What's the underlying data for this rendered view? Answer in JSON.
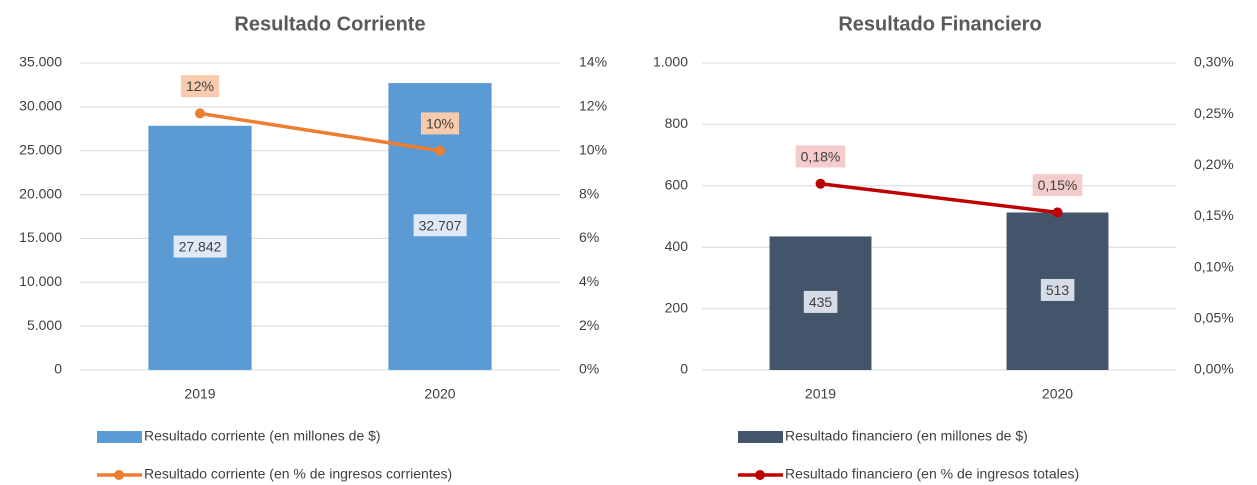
{
  "chart_data": [
    {
      "type": "bar",
      "title": "Resultado Corriente",
      "categories": [
        "2019",
        "2020"
      ],
      "series": [
        {
          "name": "Resultado corriente (en millones de $)",
          "color": "#5b9bd5",
          "label_color": "#deeaf6",
          "values": [
            27842,
            32707
          ],
          "value_labels": [
            "27.842",
            "32.707"
          ]
        },
        {
          "name": "Resultado corriente (en % de ingresos corrientes)",
          "type": "line",
          "axis": "y2",
          "color": "#ed7d31",
          "label_color": "#f8cbad",
          "values": [
            11.7,
            10.0
          ],
          "value_labels": [
            "12%",
            "10%"
          ]
        }
      ],
      "ylim": [
        0,
        35000
      ],
      "yticks": [
        0,
        {
          "value": 5000,
          "label": "5.000"
        },
        {
          "value": 10000,
          "label": "10.000"
        },
        {
          "value": 15000,
          "label": "15.000"
        },
        {
          "value": 20000,
          "label": "20.000"
        },
        {
          "value": 25000,
          "label": "25.000"
        },
        {
          "value": 30000,
          "label": "30.000"
        },
        {
          "value": 35000,
          "label": "35.000"
        }
      ],
      "y2lim": [
        0,
        14
      ],
      "y2ticks": [
        {
          "value": 0,
          "label": "0%"
        },
        {
          "value": 2,
          "label": "2%"
        },
        {
          "value": 4,
          "label": "4%"
        },
        {
          "value": 6,
          "label": "6%"
        },
        {
          "value": 8,
          "label": "8%"
        },
        {
          "value": 10,
          "label": "10%"
        },
        {
          "value": 12,
          "label": "12%"
        },
        {
          "value": 14,
          "label": "14%"
        }
      ],
      "grid": true,
      "legend": "bottom"
    },
    {
      "type": "bar",
      "title": "Resultado Financiero",
      "categories": [
        "2019",
        "2020"
      ],
      "series": [
        {
          "name": "Resultado financiero (en millones de $)",
          "color": "#44546a",
          "label_color": "#d6dce5",
          "values": [
            435,
            513
          ]
        },
        {
          "name": "Resultado financiero (en % de ingresos totales)",
          "type": "line",
          "axis": "y2",
          "color": "#c00000",
          "label_color": "#f4cccc",
          "values": [
            0.182,
            0.154
          ],
          "value_labels": [
            "0,18%",
            "0,15%"
          ]
        }
      ],
      "ylim": [
        0,
        1000
      ],
      "yticks": [
        0,
        200,
        400,
        600,
        800,
        {
          "value": 1000,
          "label": "1.000"
        }
      ],
      "y2lim": [
        0,
        0.3
      ],
      "y2ticks": [
        {
          "value": 0,
          "label": "0,00%"
        },
        {
          "value": 0.05,
          "label": "0,05%"
        },
        {
          "value": 0.1,
          "label": "0,10%"
        },
        {
          "value": 0.15,
          "label": "0,15%"
        },
        {
          "value": 0.2,
          "label": "0,20%"
        },
        {
          "value": 0.25,
          "label": "0,25%"
        },
        {
          "value": 0.3,
          "label": "0,30%"
        }
      ],
      "grid": true,
      "legend": "bottom"
    }
  ]
}
